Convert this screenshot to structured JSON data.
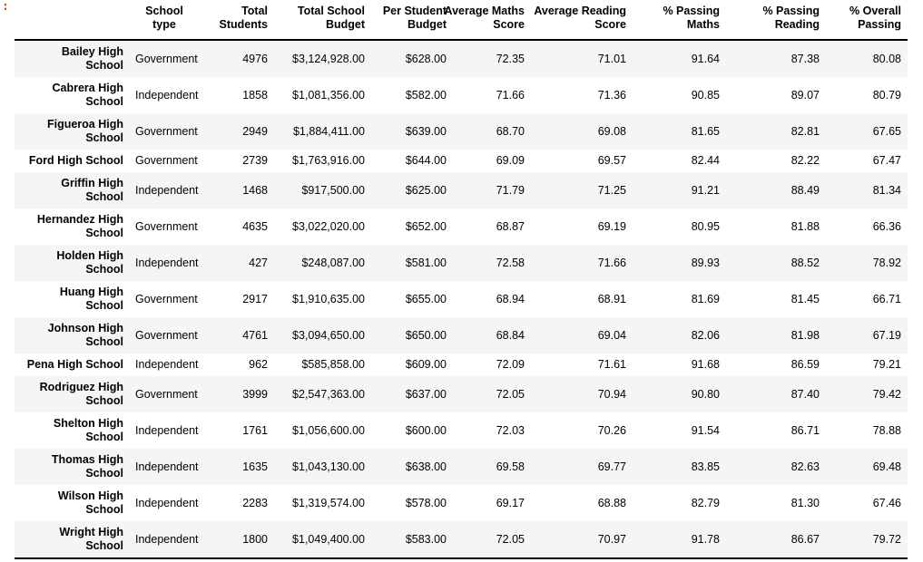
{
  "output_prompt": ":",
  "table": {
    "columns": [
      {
        "key": "type",
        "label": "School\ntype"
      },
      {
        "key": "students",
        "label": "Total\nStudents"
      },
      {
        "key": "budget",
        "label": "Total School\nBudget"
      },
      {
        "key": "per_student",
        "label": "Per Student\nBudget"
      },
      {
        "key": "avg_maths",
        "label": "Average Maths\nScore"
      },
      {
        "key": "avg_reading",
        "label": "Average Reading\nScore"
      },
      {
        "key": "p_maths",
        "label": "% Passing\nMaths"
      },
      {
        "key": "p_reading",
        "label": "% Passing\nReading"
      },
      {
        "key": "p_overall",
        "label": "% Overall\nPassing"
      }
    ],
    "rows": [
      {
        "name": "Bailey High\nSchool",
        "type": "Government",
        "students": "4976",
        "budget": "$3,124,928.00",
        "per_student": "$628.00",
        "avg_maths": "72.35",
        "avg_reading": "71.01",
        "p_maths": "91.64",
        "p_reading": "87.38",
        "p_overall": "80.08"
      },
      {
        "name": "Cabrera High\nSchool",
        "type": "Independent",
        "students": "1858",
        "budget": "$1,081,356.00",
        "per_student": "$582.00",
        "avg_maths": "71.66",
        "avg_reading": "71.36",
        "p_maths": "90.85",
        "p_reading": "89.07",
        "p_overall": "80.79"
      },
      {
        "name": "Figueroa High\nSchool",
        "type": "Government",
        "students": "2949",
        "budget": "$1,884,411.00",
        "per_student": "$639.00",
        "avg_maths": "68.70",
        "avg_reading": "69.08",
        "p_maths": "81.65",
        "p_reading": "82.81",
        "p_overall": "67.65"
      },
      {
        "name": "Ford High School",
        "type": "Government",
        "students": "2739",
        "budget": "$1,763,916.00",
        "per_student": "$644.00",
        "avg_maths": "69.09",
        "avg_reading": "69.57",
        "p_maths": "82.44",
        "p_reading": "82.22",
        "p_overall": "67.47"
      },
      {
        "name": "Griffin High\nSchool",
        "type": "Independent",
        "students": "1468",
        "budget": "$917,500.00",
        "per_student": "$625.00",
        "avg_maths": "71.79",
        "avg_reading": "71.25",
        "p_maths": "91.21",
        "p_reading": "88.49",
        "p_overall": "81.34"
      },
      {
        "name": "Hernandez High\nSchool",
        "type": "Government",
        "students": "4635",
        "budget": "$3,022,020.00",
        "per_student": "$652.00",
        "avg_maths": "68.87",
        "avg_reading": "69.19",
        "p_maths": "80.95",
        "p_reading": "81.88",
        "p_overall": "66.36"
      },
      {
        "name": "Holden High\nSchool",
        "type": "Independent",
        "students": "427",
        "budget": "$248,087.00",
        "per_student": "$581.00",
        "avg_maths": "72.58",
        "avg_reading": "71.66",
        "p_maths": "89.93",
        "p_reading": "88.52",
        "p_overall": "78.92"
      },
      {
        "name": "Huang High\nSchool",
        "type": "Government",
        "students": "2917",
        "budget": "$1,910,635.00",
        "per_student": "$655.00",
        "avg_maths": "68.94",
        "avg_reading": "68.91",
        "p_maths": "81.69",
        "p_reading": "81.45",
        "p_overall": "66.71"
      },
      {
        "name": "Johnson High\nSchool",
        "type": "Government",
        "students": "4761",
        "budget": "$3,094,650.00",
        "per_student": "$650.00",
        "avg_maths": "68.84",
        "avg_reading": "69.04",
        "p_maths": "82.06",
        "p_reading": "81.98",
        "p_overall": "67.19"
      },
      {
        "name": "Pena High School",
        "type": "Independent",
        "students": "962",
        "budget": "$585,858.00",
        "per_student": "$609.00",
        "avg_maths": "72.09",
        "avg_reading": "71.61",
        "p_maths": "91.68",
        "p_reading": "86.59",
        "p_overall": "79.21"
      },
      {
        "name": "Rodriguez High\nSchool",
        "type": "Government",
        "students": "3999",
        "budget": "$2,547,363.00",
        "per_student": "$637.00",
        "avg_maths": "72.05",
        "avg_reading": "70.94",
        "p_maths": "90.80",
        "p_reading": "87.40",
        "p_overall": "79.42"
      },
      {
        "name": "Shelton High\nSchool",
        "type": "Independent",
        "students": "1761",
        "budget": "$1,056,600.00",
        "per_student": "$600.00",
        "avg_maths": "72.03",
        "avg_reading": "70.26",
        "p_maths": "91.54",
        "p_reading": "86.71",
        "p_overall": "78.88"
      },
      {
        "name": "Thomas High\nSchool",
        "type": "Independent",
        "students": "1635",
        "budget": "$1,043,130.00",
        "per_student": "$638.00",
        "avg_maths": "69.58",
        "avg_reading": "69.77",
        "p_maths": "83.85",
        "p_reading": "82.63",
        "p_overall": "69.48"
      },
      {
        "name": "Wilson High\nSchool",
        "type": "Independent",
        "students": "2283",
        "budget": "$1,319,574.00",
        "per_student": "$578.00",
        "avg_maths": "69.17",
        "avg_reading": "68.88",
        "p_maths": "82.79",
        "p_reading": "81.30",
        "p_overall": "67.46"
      },
      {
        "name": "Wright High\nSchool",
        "type": "Independent",
        "students": "1800",
        "budget": "$1,049,400.00",
        "per_student": "$583.00",
        "avg_maths": "72.05",
        "avg_reading": "70.97",
        "p_maths": "91.78",
        "p_reading": "86.67",
        "p_overall": "79.72"
      }
    ]
  }
}
